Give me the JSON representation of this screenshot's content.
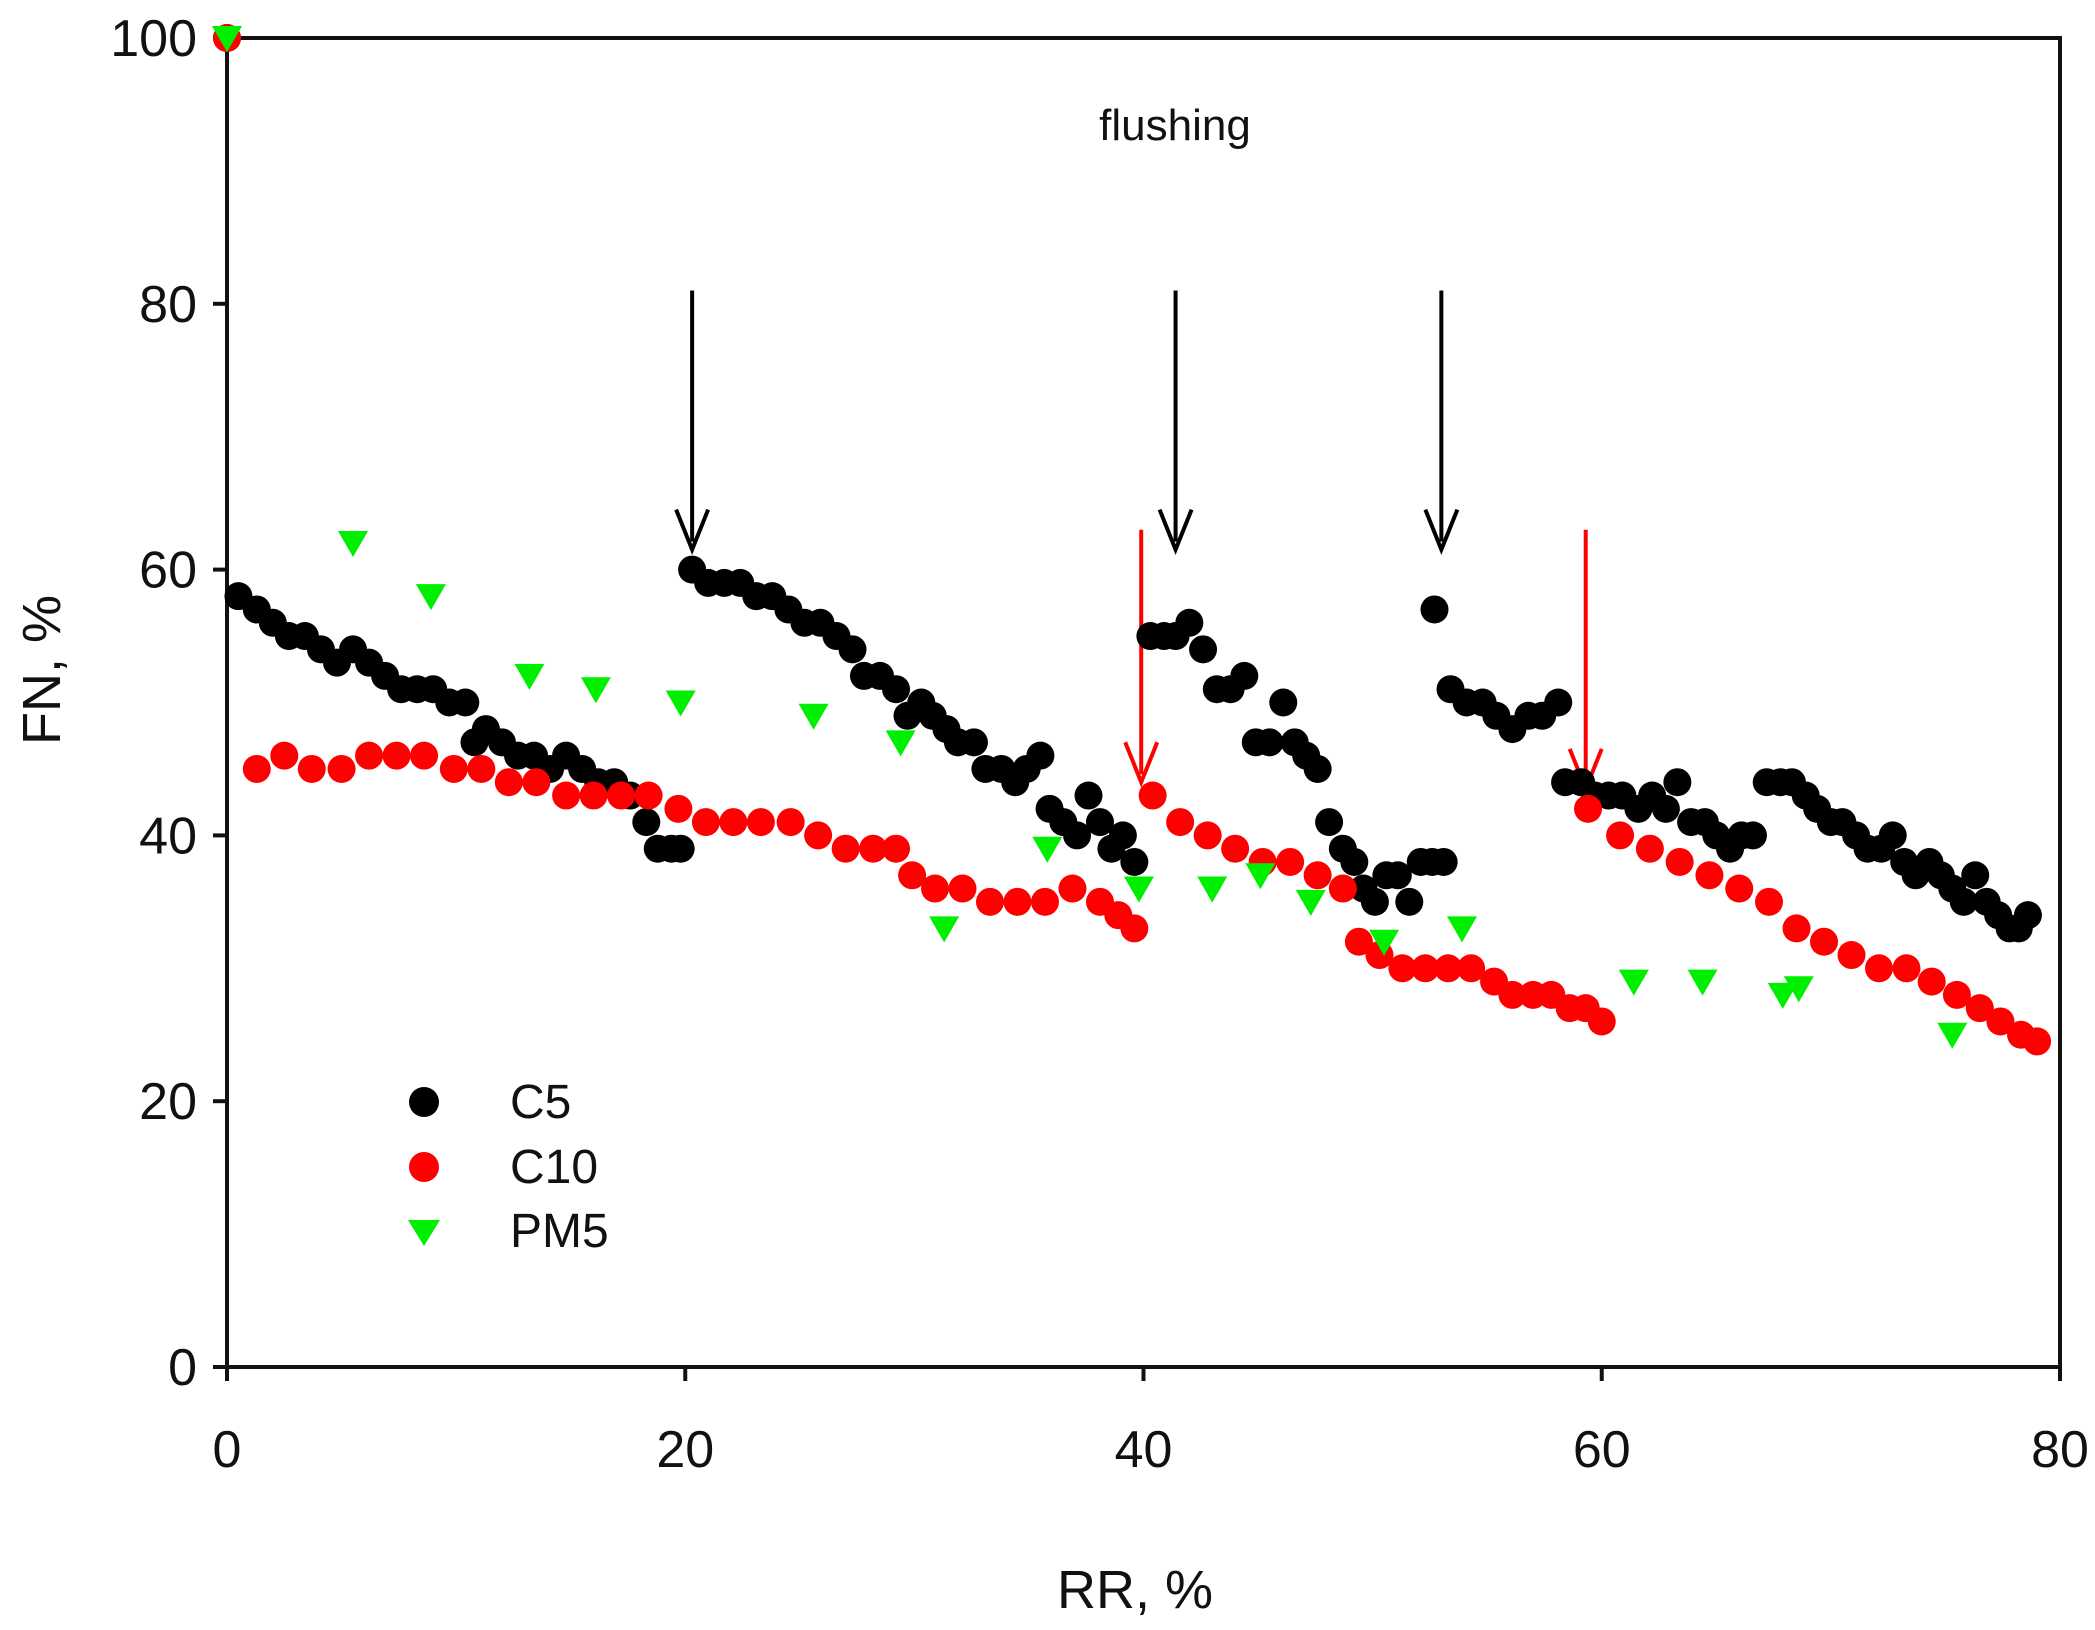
{
  "chart_data": {
    "type": "scatter",
    "title": "",
    "xlabel": "RR, %",
    "ylabel": "FN, %",
    "xlim": [
      0,
      80
    ],
    "ylim": [
      0,
      100
    ],
    "xticks": [
      "0",
      "20",
      "40",
      "60",
      "80"
    ],
    "yticks": [
      "0",
      "20",
      "40",
      "60",
      "80",
      "100"
    ],
    "grid": false,
    "legend_position": "bottom-left",
    "annotation": "flushing",
    "series": [
      {
        "name": "C5",
        "color": "#000000",
        "marker": "circle",
        "points": [
          [
            0,
            100
          ],
          [
            0.5,
            58
          ],
          [
            1.3,
            57
          ],
          [
            2,
            56
          ],
          [
            2.7,
            55
          ],
          [
            3.4,
            55
          ],
          [
            4.1,
            54
          ],
          [
            4.8,
            53
          ],
          [
            5.5,
            54
          ],
          [
            6.2,
            53
          ],
          [
            6.9,
            52
          ],
          [
            7.6,
            51
          ],
          [
            8.3,
            51
          ],
          [
            9,
            51
          ],
          [
            9.7,
            50
          ],
          [
            10.4,
            50
          ],
          [
            10.8,
            47
          ],
          [
            11.3,
            48
          ],
          [
            12,
            47
          ],
          [
            12.7,
            46
          ],
          [
            13.4,
            46
          ],
          [
            14.1,
            45
          ],
          [
            14.8,
            46
          ],
          [
            15.5,
            45
          ],
          [
            16.2,
            44
          ],
          [
            16.9,
            44
          ],
          [
            17.6,
            43
          ],
          [
            18.3,
            41
          ],
          [
            18.8,
            39
          ],
          [
            19.4,
            39
          ],
          [
            19.8,
            39
          ],
          [
            20.3,
            60
          ],
          [
            21,
            59
          ],
          [
            21.7,
            59
          ],
          [
            22.4,
            59
          ],
          [
            23.1,
            58
          ],
          [
            23.8,
            58
          ],
          [
            24.5,
            57
          ],
          [
            25.2,
            56
          ],
          [
            25.9,
            56
          ],
          [
            26.6,
            55
          ],
          [
            27.3,
            54
          ],
          [
            27.8,
            52
          ],
          [
            28.5,
            52
          ],
          [
            29.2,
            51
          ],
          [
            29.7,
            49
          ],
          [
            30.3,
            50
          ],
          [
            30.8,
            49
          ],
          [
            31.4,
            48
          ],
          [
            31.9,
            47
          ],
          [
            32.6,
            47
          ],
          [
            33.1,
            45
          ],
          [
            33.8,
            45
          ],
          [
            34.4,
            44
          ],
          [
            34.9,
            45
          ],
          [
            35.5,
            46
          ],
          [
            35.9,
            42
          ],
          [
            36.5,
            41
          ],
          [
            37.1,
            40
          ],
          [
            37.6,
            43
          ],
          [
            38.1,
            41
          ],
          [
            38.6,
            39
          ],
          [
            39.1,
            40
          ],
          [
            39.6,
            38
          ],
          [
            40.3,
            55
          ],
          [
            40.9,
            55
          ],
          [
            41.4,
            55
          ],
          [
            42,
            56
          ],
          [
            42.6,
            54
          ],
          [
            43.2,
            51
          ],
          [
            43.8,
            51
          ],
          [
            44.4,
            52
          ],
          [
            44.9,
            47
          ],
          [
            45.5,
            47
          ],
          [
            46.1,
            50
          ],
          [
            46.6,
            47
          ],
          [
            47.1,
            46
          ],
          [
            47.6,
            45
          ],
          [
            48.1,
            41
          ],
          [
            48.7,
            39
          ],
          [
            49.2,
            38
          ],
          [
            49.6,
            36
          ],
          [
            50.1,
            35
          ],
          [
            50.6,
            37
          ],
          [
            51.1,
            37
          ],
          [
            51.6,
            35
          ],
          [
            52.1,
            38
          ],
          [
            52.6,
            38
          ],
          [
            53.1,
            38
          ],
          [
            52.7,
            57
          ],
          [
            53.4,
            51
          ],
          [
            54.1,
            50
          ],
          [
            54.8,
            50
          ],
          [
            55.4,
            49
          ],
          [
            56.1,
            48
          ],
          [
            56.8,
            49
          ],
          [
            57.4,
            49
          ],
          [
            58.1,
            50
          ],
          [
            58.4,
            44
          ],
          [
            59.1,
            44
          ],
          [
            59.7,
            43
          ],
          [
            60.3,
            43
          ],
          [
            60.9,
            43
          ],
          [
            61.6,
            42
          ],
          [
            62.2,
            43
          ],
          [
            62.8,
            42
          ],
          [
            63.3,
            44
          ],
          [
            63.9,
            41
          ],
          [
            64.5,
            41
          ],
          [
            65,
            40
          ],
          [
            65.6,
            39
          ],
          [
            66.1,
            40
          ],
          [
            66.6,
            40
          ],
          [
            67.2,
            44
          ],
          [
            67.8,
            44
          ],
          [
            68.3,
            44
          ],
          [
            68.9,
            43
          ],
          [
            69.4,
            42
          ],
          [
            70,
            41
          ],
          [
            70.5,
            41
          ],
          [
            71.1,
            40
          ],
          [
            71.6,
            39
          ],
          [
            72.2,
            39
          ],
          [
            72.7,
            40
          ],
          [
            73.2,
            38
          ],
          [
            73.7,
            37
          ],
          [
            74.3,
            38
          ],
          [
            74.8,
            37
          ],
          [
            75.3,
            36
          ],
          [
            75.8,
            35
          ],
          [
            76.3,
            37
          ],
          [
            76.8,
            35
          ],
          [
            77.3,
            34
          ],
          [
            77.8,
            33
          ],
          [
            78.2,
            33
          ],
          [
            78.6,
            34
          ]
        ]
      },
      {
        "name": "C10",
        "color": "#ff0000",
        "marker": "circle",
        "points": [
          [
            0,
            100
          ],
          [
            1.3,
            45
          ],
          [
            2.5,
            46
          ],
          [
            3.7,
            45
          ],
          [
            5,
            45
          ],
          [
            6.2,
            46
          ],
          [
            7.4,
            46
          ],
          [
            8.6,
            46
          ],
          [
            9.9,
            45
          ],
          [
            11.1,
            45
          ],
          [
            12.3,
            44
          ],
          [
            13.5,
            44
          ],
          [
            14.8,
            43
          ],
          [
            16,
            43
          ],
          [
            17.2,
            43
          ],
          [
            18.4,
            43
          ],
          [
            19.7,
            42
          ],
          [
            20.9,
            41
          ],
          [
            22.1,
            41
          ],
          [
            23.3,
            41
          ],
          [
            24.6,
            41
          ],
          [
            25.8,
            40
          ],
          [
            27,
            39
          ],
          [
            28.2,
            39
          ],
          [
            29.2,
            39
          ],
          [
            29.9,
            37
          ],
          [
            30.9,
            36
          ],
          [
            32.1,
            36
          ],
          [
            33.3,
            35
          ],
          [
            34.5,
            35
          ],
          [
            35.7,
            35
          ],
          [
            36.9,
            36
          ],
          [
            38.1,
            35
          ],
          [
            38.9,
            34
          ],
          [
            39.6,
            33
          ],
          [
            40.4,
            43
          ],
          [
            41.6,
            41
          ],
          [
            42.8,
            40
          ],
          [
            44,
            39
          ],
          [
            45.2,
            38
          ],
          [
            46.4,
            38
          ],
          [
            47.6,
            37
          ],
          [
            48.7,
            36
          ],
          [
            49.4,
            32
          ],
          [
            50.3,
            31
          ],
          [
            51.3,
            30
          ],
          [
            52.3,
            30
          ],
          [
            53.3,
            30
          ],
          [
            54.3,
            30
          ],
          [
            55.3,
            29
          ],
          [
            56.1,
            28
          ],
          [
            57,
            28
          ],
          [
            57.8,
            28
          ],
          [
            58.6,
            27
          ],
          [
            59.3,
            27
          ],
          [
            60,
            26
          ],
          [
            59.4,
            42
          ],
          [
            60.8,
            40
          ],
          [
            62.1,
            39
          ],
          [
            63.4,
            38
          ],
          [
            64.7,
            37
          ],
          [
            66,
            36
          ],
          [
            67.3,
            35
          ],
          [
            68.5,
            33
          ],
          [
            69.7,
            32
          ],
          [
            70.9,
            31
          ],
          [
            72.1,
            30
          ],
          [
            73.3,
            30
          ],
          [
            74.4,
            29
          ],
          [
            75.5,
            28
          ],
          [
            76.5,
            27
          ],
          [
            77.4,
            26
          ],
          [
            78.3,
            25
          ],
          [
            79,
            24.5
          ]
        ]
      },
      {
        "name": "PM5",
        "color": "#00ee00",
        "marker": "triangle-down",
        "points": [
          [
            0,
            100
          ],
          [
            5.5,
            62
          ],
          [
            8.9,
            58
          ],
          [
            13.2,
            52
          ],
          [
            16.1,
            51
          ],
          [
            19.8,
            50
          ],
          [
            25.6,
            49
          ],
          [
            29.4,
            47
          ],
          [
            31.3,
            33
          ],
          [
            35.8,
            39
          ],
          [
            39.8,
            36
          ],
          [
            43,
            36
          ],
          [
            45.1,
            37
          ],
          [
            47.3,
            35
          ],
          [
            50.5,
            32
          ],
          [
            53.9,
            33
          ],
          [
            61.4,
            29
          ],
          [
            64.4,
            29
          ],
          [
            67.9,
            28
          ],
          [
            68.6,
            28.5
          ],
          [
            75.3,
            25
          ]
        ]
      }
    ],
    "arrows": [
      {
        "color": "#000000",
        "x": 20.3,
        "y_from": 81,
        "y_to": 61.5
      },
      {
        "color": "#000000",
        "x": 41.4,
        "y_from": 81,
        "y_to": 61.5
      },
      {
        "color": "#000000",
        "x": 53,
        "y_from": 81,
        "y_to": 61.5
      },
      {
        "color": "#ff0000",
        "x": 39.9,
        "y_from": 63,
        "y_to": 44
      },
      {
        "color": "#ff0000",
        "x": 59.3,
        "y_from": 63,
        "y_to": 43.5
      }
    ]
  }
}
